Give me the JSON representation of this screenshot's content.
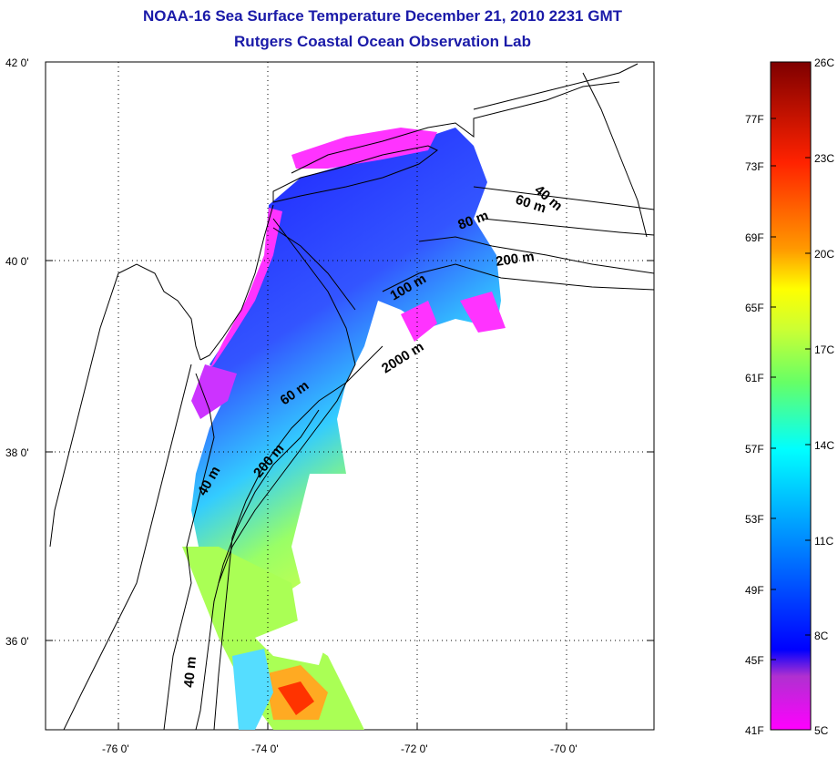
{
  "title": "NOAA-16 Sea Surface Temperature December 21, 2010 2231 GMT",
  "subtitle": "Rutgers Coastal Ocean Observation Lab",
  "map": {
    "lat_ticks": [
      "42 0'",
      "40 0'",
      "38 0'",
      "36 0'"
    ],
    "lon_ticks": [
      "-76 0'",
      "-74 0'",
      "-72 0'",
      "-70 0'"
    ],
    "contour_labels": [
      "40 m",
      "60 m",
      "80 m",
      "200 m",
      "100 m",
      "2000 m",
      "60 m",
      "200 m",
      "40 m",
      "40 m"
    ],
    "grid": "dotted"
  },
  "colorbar": {
    "celsius_ticks": [
      "26C",
      "23C",
      "20C",
      "17C",
      "14C",
      "11C",
      "8C",
      "5C"
    ],
    "fahrenheit_ticks": [
      "77F",
      "73F",
      "69F",
      "65F",
      "61F",
      "57F",
      "53F",
      "49F",
      "45F",
      "41F"
    ],
    "range_c": [
      5,
      26
    ],
    "colors": {
      "high": "#7f0000",
      "red": "#ff0000",
      "orange": "#ff9900",
      "yellow": "#ffff00",
      "green": "#7fff3f",
      "cyan": "#00ffff",
      "blue": "#0033ff",
      "violet": "#7f3fbf",
      "low": "#ff00ff"
    }
  }
}
